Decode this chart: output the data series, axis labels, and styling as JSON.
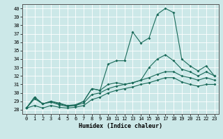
{
  "xlabel": "Humidex (Indice chaleur)",
  "xlim": [
    -0.5,
    23.5
  ],
  "ylim": [
    27.5,
    40.5
  ],
  "yticks": [
    28,
    29,
    30,
    31,
    32,
    33,
    34,
    35,
    36,
    37,
    38,
    39,
    40
  ],
  "xticks": [
    0,
    1,
    2,
    3,
    4,
    5,
    6,
    7,
    8,
    9,
    10,
    11,
    12,
    13,
    14,
    15,
    16,
    17,
    18,
    19,
    20,
    21,
    22,
    23
  ],
  "background_color": "#cce8e8",
  "grid_color": "#b0d8d8",
  "line_color": "#1a6b5a",
  "line1": [
    28.2,
    29.5,
    28.7,
    29.0,
    28.8,
    28.5,
    28.5,
    29.0,
    30.5,
    30.3,
    33.4,
    33.8,
    33.8,
    37.2,
    35.9,
    36.5,
    39.3,
    40.0,
    39.5,
    34.0,
    33.2,
    32.6,
    33.2,
    32.0
  ],
  "line2": [
    28.2,
    29.5,
    28.7,
    29.0,
    28.7,
    28.5,
    28.6,
    29.0,
    30.5,
    30.3,
    31.0,
    31.2,
    31.0,
    31.2,
    31.5,
    33.0,
    34.0,
    34.5,
    33.8,
    32.8,
    32.5,
    32.0,
    32.5,
    32.0
  ],
  "line3": [
    28.2,
    29.3,
    28.7,
    28.9,
    28.6,
    28.4,
    28.5,
    28.8,
    29.8,
    30.0,
    30.5,
    30.8,
    31.0,
    31.2,
    31.5,
    31.8,
    32.2,
    32.5,
    32.5,
    32.0,
    31.8,
    31.5,
    31.8,
    31.5
  ],
  "line4": [
    28.2,
    28.5,
    28.2,
    28.5,
    28.3,
    28.2,
    28.3,
    28.5,
    29.2,
    29.5,
    30.0,
    30.3,
    30.5,
    30.7,
    31.0,
    31.2,
    31.5,
    31.8,
    31.8,
    31.3,
    31.0,
    30.8,
    31.0,
    31.0
  ]
}
